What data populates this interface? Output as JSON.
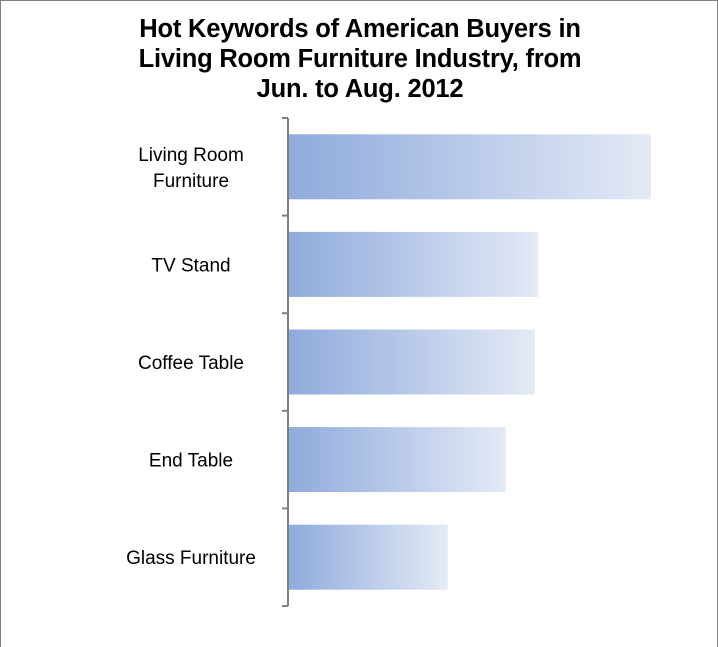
{
  "chart_data": {
    "type": "bar",
    "orientation": "horizontal",
    "title_lines": [
      "Hot Keywords of American Buyers in",
      "Living Room Furniture Industry, from",
      "Jun. to Aug. 2012"
    ],
    "title": "Hot Keywords of American Buyers in Living Room Furniture Industry, from Jun. to Aug. 2012",
    "categories": [
      [
        "Living Room",
        "Furniture"
      ],
      [
        "TV Stand"
      ],
      [
        "Coffee Table"
      ],
      [
        "End Table"
      ],
      [
        "Glass Furniture"
      ]
    ],
    "category_names": [
      "Living Room Furniture",
      "TV Stand",
      "Coffee Table",
      "End Table",
      "Glass Furniture"
    ],
    "values": [
      100,
      69,
      68,
      60,
      44
    ],
    "xlim": [
      0,
      100
    ],
    "grid": false,
    "legend": "none",
    "bar_gradient": [
      "#8faadc",
      "#e4eaf6"
    ]
  }
}
